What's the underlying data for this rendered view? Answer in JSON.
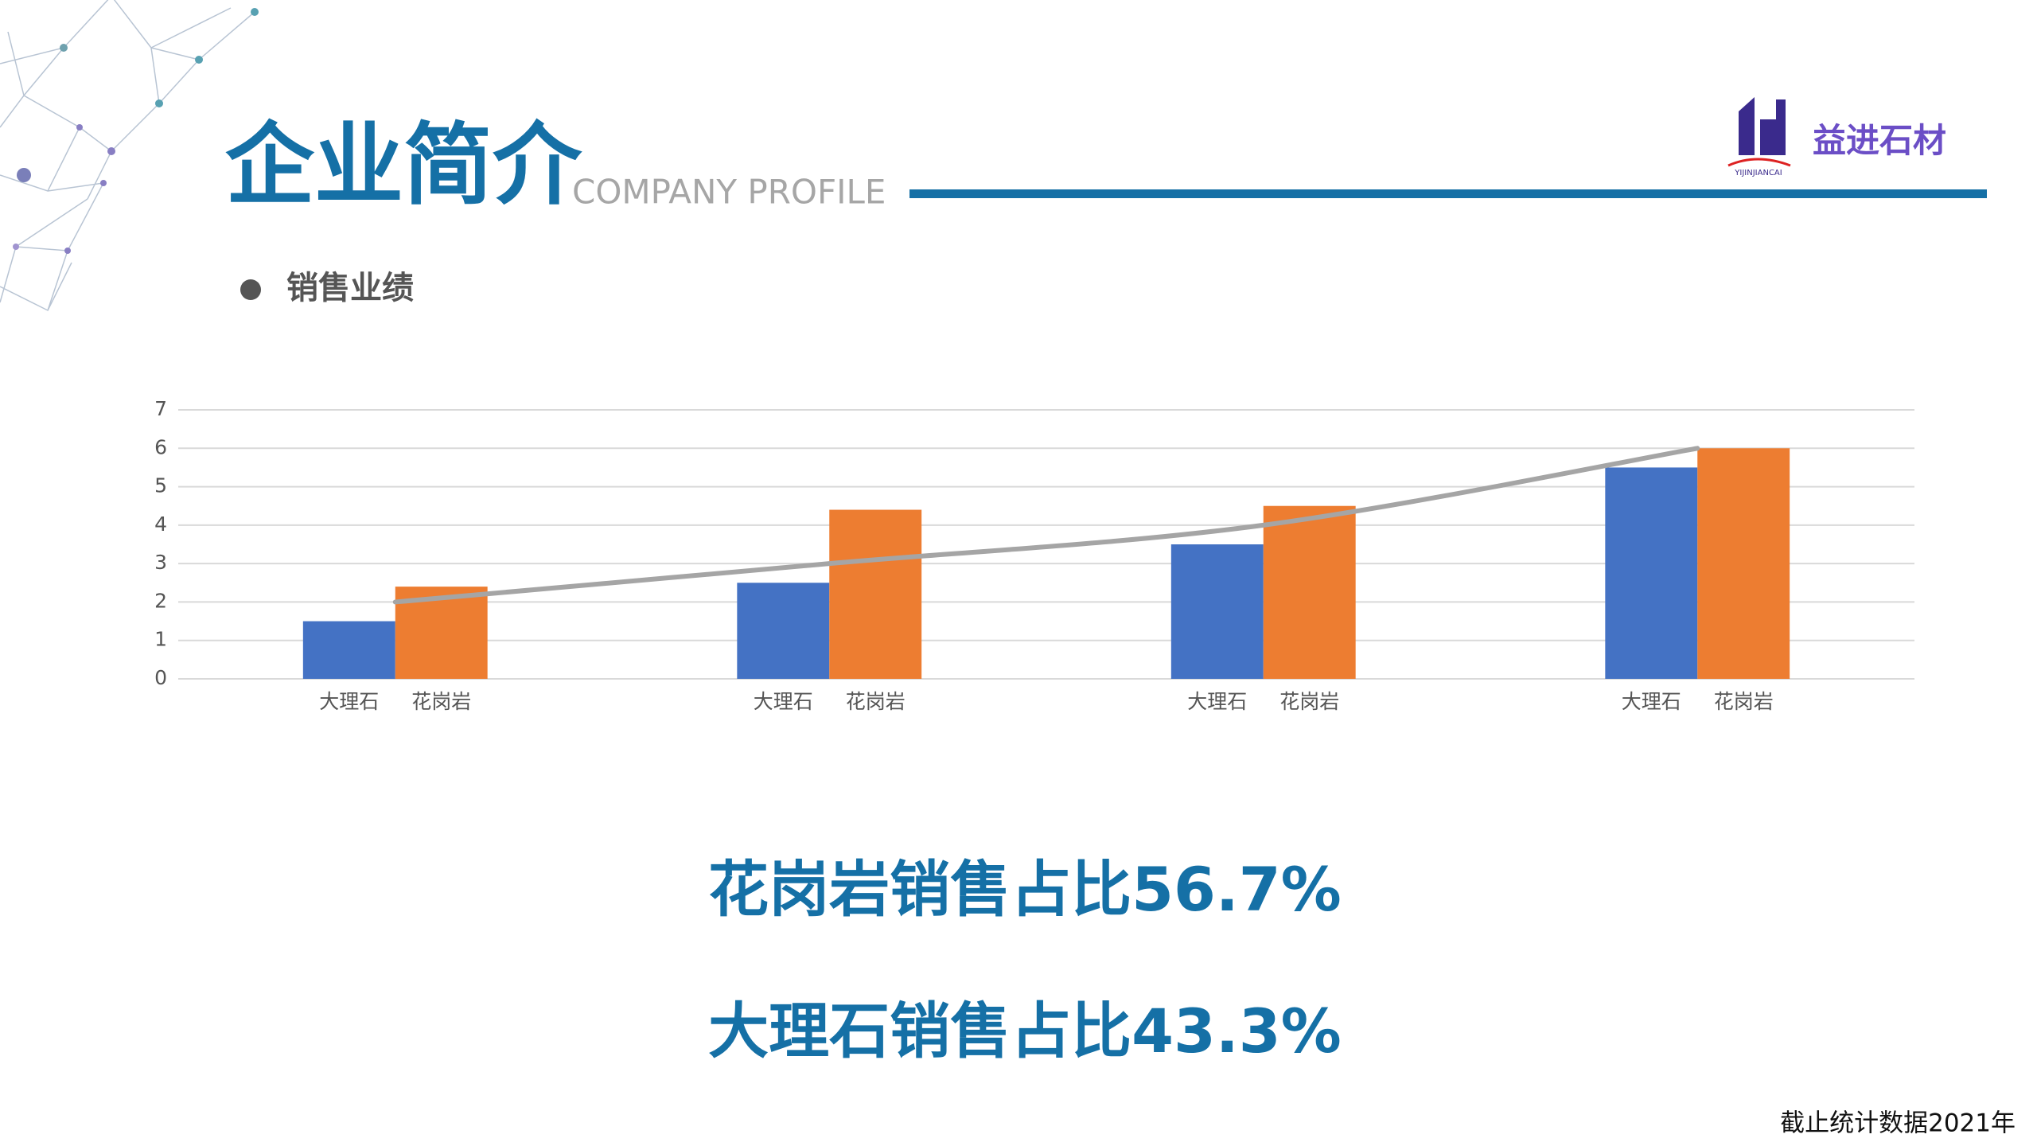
{
  "header": {
    "title": "企业简介",
    "subtitle": "COMPANY PROFILE",
    "brand": "益进石材",
    "brand_tag": "YIJINJIANCAI"
  },
  "section": "销售业绩",
  "chart_data": {
    "type": "bar",
    "categories": [
      null,
      null,
      null,
      null
    ],
    "series": [
      {
        "name": "大理石",
        "color": "#4472c4",
        "values": [
          1.5,
          2.5,
          3.5,
          5.5
        ]
      },
      {
        "name": "花岗岩",
        "color": "#ed7d31",
        "values": [
          2.4,
          4.4,
          4.5,
          6
        ]
      },
      {
        "type": "line",
        "color": "#a5a5a5",
        "values": [
          2,
          3,
          4,
          6
        ]
      }
    ],
    "ylim": [
      0,
      7
    ],
    "yticks": [
      0,
      1,
      2,
      3,
      4,
      5,
      6,
      7
    ],
    "grid": true
  },
  "summary": [
    "花岗岩销售占比56.7%",
    "大理石销售占比43.3%"
  ],
  "footnote": "截止统计数据2021年"
}
